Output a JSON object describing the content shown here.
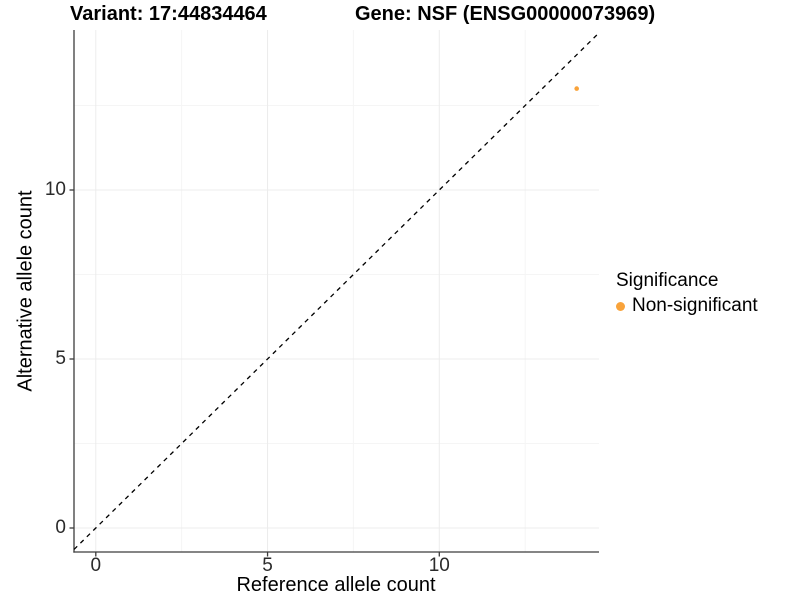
{
  "chart_data": {
    "type": "scatter",
    "titles": [
      "Variant: 17:44834464",
      "Gene: NSF (ENSG00000073969)"
    ],
    "xlabel": "Reference allele count",
    "ylabel": "Alternative allele count",
    "x_ticks": [
      0,
      5,
      10
    ],
    "y_ticks": [
      0,
      5,
      10
    ],
    "x_minor_ticks": [
      2.5,
      7.5,
      12.5
    ],
    "y_minor_ticks": [
      2.5,
      7.5,
      12.5
    ],
    "xlim": [
      -0.65,
      14.65
    ],
    "ylim": [
      -0.71,
      14.73
    ],
    "grid": "major and minor gridlines, very light gray on white",
    "identity_line": {
      "slope": 1,
      "intercept": 0,
      "style": "dashed",
      "color": "#000000"
    },
    "series": [
      {
        "name": "Non-significant",
        "color": "#F9A33B",
        "points": [
          {
            "x": 14,
            "y": 13
          }
        ]
      }
    ],
    "legend": {
      "title": "Significance",
      "position": "right",
      "items": [
        {
          "label": "Non-significant",
          "color": "#F9A33B"
        }
      ]
    }
  },
  "colors": {
    "background": "#FFFFFF",
    "axis": "#3C3C3C",
    "tick_text": "#2B2B2B",
    "grid_major": "#ECECEC",
    "grid_minor": "#F5F5F5"
  }
}
